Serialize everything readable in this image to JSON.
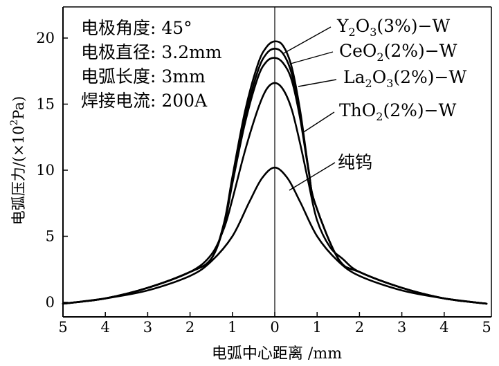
{
  "chart_data": {
    "type": "line",
    "xlabel": "电弧中心距离 /mm",
    "ylabel": "电弧压力/(×10²Pa)",
    "x_ticks": [
      "5",
      "4",
      "3",
      "2",
      "1",
      "0",
      "1",
      "2",
      "3",
      "4",
      "5"
    ],
    "y_ticks": [
      "0",
      "5",
      "10",
      "15",
      "20"
    ],
    "xlim": [
      -5,
      5
    ],
    "ylim": [
      -1,
      23
    ],
    "grid": false,
    "conditions": [
      {
        "label": "电极角度",
        "value": "45°"
      },
      {
        "label": "电极直径",
        "value": "3.2mm"
      },
      {
        "label": "电弧长度",
        "value": "3mm"
      },
      {
        "label": "焊接电流",
        "value": "200A"
      }
    ],
    "series": [
      {
        "name": "Y₂O₃(3%)−W",
        "label_parts": [
          [
            "Y",
            ""
          ],
          [
            "2",
            "sub"
          ],
          [
            "O",
            ""
          ],
          [
            "3",
            "sub"
          ],
          [
            "(3%)−W",
            ""
          ]
        ],
        "points": [
          [
            -5,
            -0.1
          ],
          [
            -4,
            0.3
          ],
          [
            -3,
            1.1
          ],
          [
            -2,
            2.3
          ],
          [
            -1.5,
            3.3
          ],
          [
            -1.2,
            6.0
          ],
          [
            -1,
            9.5
          ],
          [
            -0.7,
            14.5
          ],
          [
            -0.4,
            18.0
          ],
          [
            -0.2,
            19.3
          ],
          [
            0,
            19.75
          ],
          [
            0.2,
            19.4
          ],
          [
            0.4,
            17.8
          ],
          [
            0.6,
            14.5
          ],
          [
            0.8,
            10.0
          ],
          [
            0.95,
            7.5
          ],
          [
            1.5,
            3.3
          ],
          [
            2,
            2.3
          ],
          [
            3,
            1.1
          ],
          [
            4,
            0.3
          ],
          [
            5,
            -0.1
          ]
        ]
      },
      {
        "name": "CeO₂(2%)−W",
        "label_parts": [
          [
            "CeO",
            ""
          ],
          [
            "2",
            "sub"
          ],
          [
            "(2%)−W",
            ""
          ]
        ],
        "points": [
          [
            -5,
            -0.1
          ],
          [
            -4,
            0.3
          ],
          [
            -3,
            1.1
          ],
          [
            -2,
            2.3
          ],
          [
            -1.5,
            3.3
          ],
          [
            -1.2,
            5.9
          ],
          [
            -1,
            9.2
          ],
          [
            -0.7,
            14.0
          ],
          [
            -0.4,
            17.5
          ],
          [
            -0.2,
            18.8
          ],
          [
            0,
            19.2
          ],
          [
            0.2,
            18.8
          ],
          [
            0.4,
            17.3
          ],
          [
            0.6,
            14.2
          ],
          [
            0.8,
            10.0
          ],
          [
            0.95,
            7.5
          ],
          [
            1.5,
            3.3
          ],
          [
            2,
            2.3
          ],
          [
            3,
            1.1
          ],
          [
            4,
            0.3
          ],
          [
            5,
            -0.1
          ]
        ]
      },
      {
        "name": "La₂O₃(2%)−W",
        "label_parts": [
          [
            "La",
            ""
          ],
          [
            "2",
            "sub"
          ],
          [
            "O",
            ""
          ],
          [
            "3",
            "sub"
          ],
          [
            "(2%)−W",
            ""
          ]
        ],
        "points": [
          [
            -5,
            -0.1
          ],
          [
            -4,
            0.3
          ],
          [
            -3,
            1.1
          ],
          [
            -2,
            2.3
          ],
          [
            -1.5,
            3.3
          ],
          [
            -1.2,
            5.8
          ],
          [
            -1,
            9.0
          ],
          [
            -0.7,
            13.6
          ],
          [
            -0.4,
            17.0
          ],
          [
            -0.2,
            18.2
          ],
          [
            0,
            18.5
          ],
          [
            0.2,
            18.1
          ],
          [
            0.4,
            16.8
          ],
          [
            0.6,
            13.9
          ],
          [
            0.8,
            9.9
          ],
          [
            0.95,
            7.5
          ],
          [
            1.5,
            3.3
          ],
          [
            2,
            2.3
          ],
          [
            3,
            1.1
          ],
          [
            4,
            0.3
          ],
          [
            5,
            -0.1
          ]
        ]
      },
      {
        "name": "ThO₂(2%)−W",
        "label_parts": [
          [
            "ThO",
            ""
          ],
          [
            "2",
            "sub"
          ],
          [
            "(2%)−W",
            ""
          ]
        ],
        "points": [
          [
            -5,
            -0.1
          ],
          [
            -4,
            0.3
          ],
          [
            -3,
            1.1
          ],
          [
            -2,
            2.3
          ],
          [
            -1.5,
            3.6
          ],
          [
            -1.2,
            5.6
          ],
          [
            -1,
            7.8
          ],
          [
            -0.7,
            11.5
          ],
          [
            -0.4,
            14.6
          ],
          [
            -0.2,
            16.1
          ],
          [
            0,
            16.6
          ],
          [
            0.2,
            16.1
          ],
          [
            0.4,
            14.6
          ],
          [
            0.6,
            12.0
          ],
          [
            0.8,
            9.0
          ],
          [
            1,
            6.2
          ],
          [
            1.3,
            4.2
          ],
          [
            1.6,
            3.3
          ],
          [
            2,
            2.3
          ],
          [
            3,
            1.1
          ],
          [
            4,
            0.3
          ],
          [
            5,
            -0.1
          ]
        ]
      },
      {
        "name": "纯钨",
        "label_parts": [
          [
            "纯钨",
            ""
          ]
        ],
        "points": [
          [
            -5,
            -0.1
          ],
          [
            -4,
            0.3
          ],
          [
            -3,
            0.9
          ],
          [
            -2,
            2.0
          ],
          [
            -1.5,
            3.1
          ],
          [
            -1,
            5.0
          ],
          [
            -0.6,
            7.6
          ],
          [
            -0.3,
            9.4
          ],
          [
            0,
            10.2
          ],
          [
            0.3,
            9.4
          ],
          [
            0.6,
            7.6
          ],
          [
            1,
            5.0
          ],
          [
            1.5,
            3.1
          ],
          [
            2,
            2.0
          ],
          [
            3,
            0.9
          ],
          [
            4,
            0.3
          ],
          [
            5,
            -0.1
          ]
        ]
      }
    ]
  }
}
